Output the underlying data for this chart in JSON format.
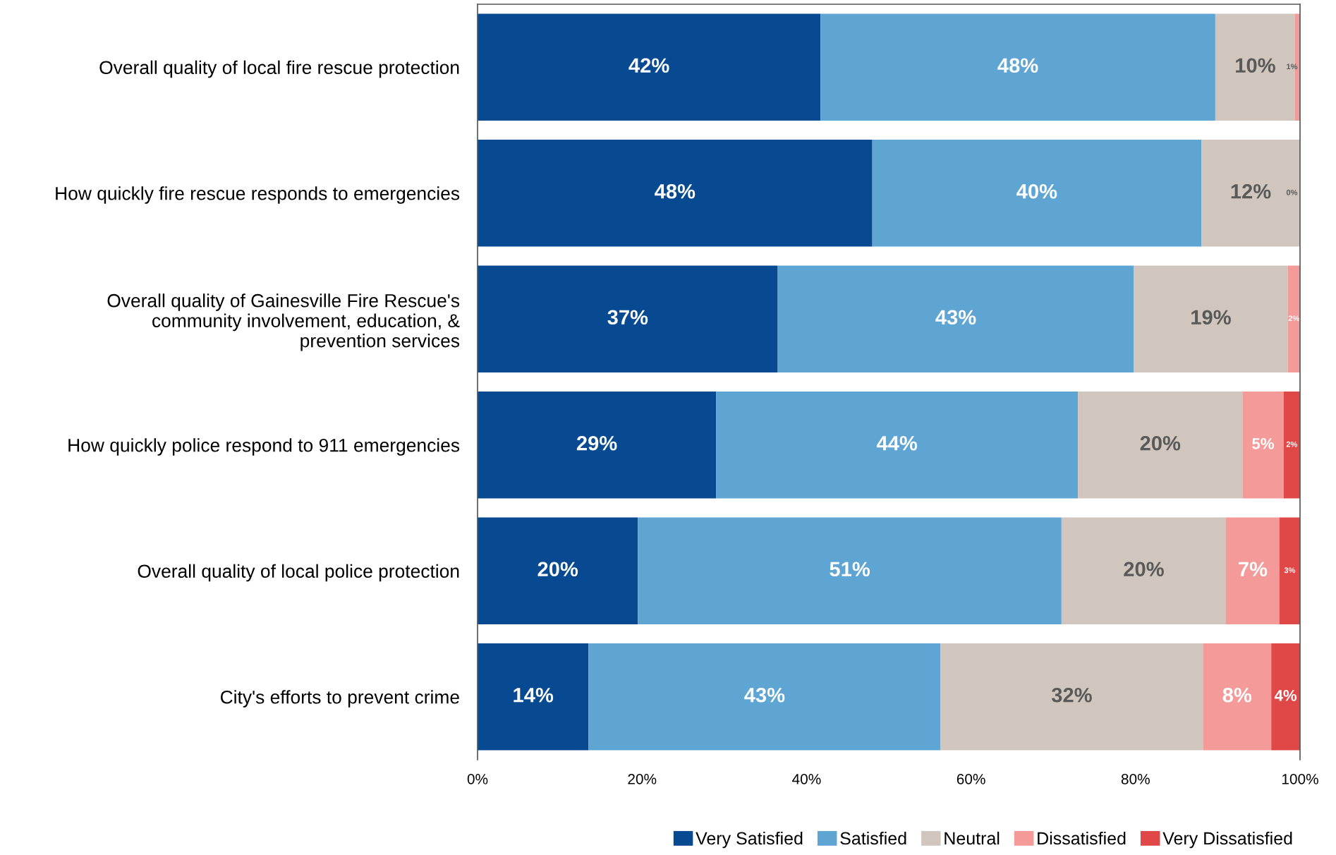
{
  "chart_data": {
    "type": "bar",
    "orientation": "horizontal",
    "stacked": true,
    "categories": [
      "Overall quality of local fire rescue protection",
      "How quickly fire rescue responds to emergencies",
      "Overall quality of Gainesville Fire Rescue's\ncommunity involvement, education, &\nprevention services",
      "How quickly police respond to 911 emergencies",
      "Overall quality of local police protection",
      "City's efforts to prevent crime"
    ],
    "series": [
      {
        "name": "Very Satisfied",
        "color": "#084a91",
        "values": [
          41.7,
          48,
          36.5,
          29,
          19.5,
          13.5
        ],
        "value_labels": [
          "42%",
          "48%",
          "37%",
          "29%",
          "20%",
          "14%"
        ]
      },
      {
        "name": "Satisfied",
        "color": "#5fa5d4",
        "values": [
          48,
          40,
          43.3,
          44,
          51.5,
          42.8
        ],
        "value_labels": [
          "48%",
          "40%",
          "43%",
          "44%",
          "51%",
          "43%"
        ]
      },
      {
        "name": "Neutral",
        "color": "#d0c6bd",
        "values": [
          9.7,
          12,
          18.7,
          20,
          20,
          31.9
        ],
        "value_labels": [
          "10%",
          "12%",
          "19%",
          "20%",
          "20%",
          "32%"
        ]
      },
      {
        "name": "Dissatisfied",
        "color": "#f49a99",
        "values": [
          0.6,
          0,
          1.5,
          5,
          6.5,
          8.3
        ],
        "value_labels": [
          "1%",
          "0%",
          "2%",
          "5%",
          "7%",
          "8%"
        ]
      },
      {
        "name": "Very Dissatisfied",
        "color": "#e04848",
        "values": [
          0,
          0,
          0,
          2,
          2.5,
          3.5
        ],
        "value_labels": [
          null,
          null,
          null,
          "2%",
          "3%",
          "4%"
        ]
      }
    ],
    "xlim": [
      0,
      100
    ],
    "xticks": [
      {
        "value": 0,
        "label": "0%"
      },
      {
        "value": 20,
        "label": "20%"
      },
      {
        "value": 40,
        "label": "40%"
      },
      {
        "value": 60,
        "label": "60%"
      },
      {
        "value": 80,
        "label": "80%"
      },
      {
        "value": 100,
        "label": "100%"
      }
    ],
    "grid": false,
    "legend": "bottom right"
  }
}
